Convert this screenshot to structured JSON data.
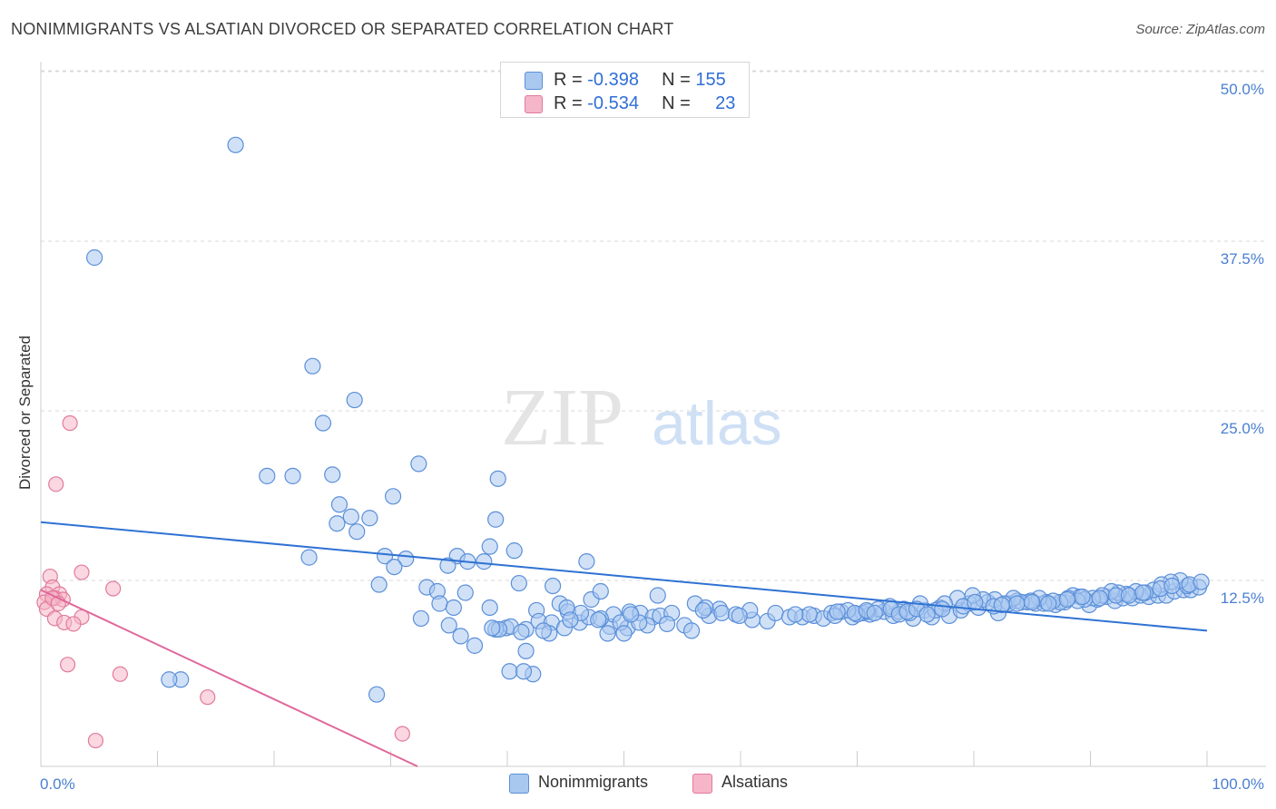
{
  "header": {
    "title": "NONIMMIGRANTS VS ALSATIAN DIVORCED OR SEPARATED CORRELATION CHART",
    "source": "Source: ZipAtlas.com"
  },
  "watermark": {
    "zip": "ZIP",
    "atlas": "atlas"
  },
  "legend_top": {
    "rows": [
      {
        "r_label": "R = ",
        "r_value": "-0.398",
        "n_label": "N = ",
        "n_value": "155"
      },
      {
        "r_label": "R = ",
        "r_value": "-0.534",
        "n_label": "N = ",
        "n_value": "23"
      }
    ]
  },
  "legend_bottom": {
    "items": [
      "Nonimmigrants",
      "Alsatians"
    ]
  },
  "colors": {
    "blue_fill": "#a9c8f0",
    "blue_stroke": "#5b8fd9",
    "blue_line": "#2f72d3",
    "pink_fill": "#f6b6c9",
    "pink_stroke": "#e27a9b",
    "pink_line": "#e0669a",
    "grid": "#d9d9d9",
    "tick_text": "#4a7fd1"
  },
  "chart_data": {
    "type": "scatter",
    "title": "NONIMMIGRANTS VS ALSATIAN DIVORCED OR SEPARATED CORRELATION CHART",
    "xlabel": "",
    "ylabel": "Divorced or Separated",
    "xlim": [
      0,
      100
    ],
    "ylim": [
      0,
      50
    ],
    "x_tick_labels": [
      "0.0%",
      "100.0%"
    ],
    "y_ticks": [
      12.5,
      25.0,
      37.5,
      50.0
    ],
    "y_tick_labels": [
      "12.5%",
      "25.0%",
      "37.5%",
      "50.0%"
    ],
    "grid": true,
    "legend_position": "bottom",
    "series": [
      {
        "name": "Nonimmigrants",
        "r": -0.398,
        "n": 155,
        "trend": {
          "x": [
            0,
            100
          ],
          "y": [
            18.0,
            10.0
          ]
        },
        "points": [
          [
            16.7,
            45.8
          ],
          [
            4.6,
            37.5
          ],
          [
            23.3,
            29.5
          ],
          [
            26.9,
            27.0
          ],
          [
            24.2,
            25.3
          ],
          [
            32.4,
            22.3
          ],
          [
            39.2,
            21.2
          ],
          [
            19.4,
            21.4
          ],
          [
            21.6,
            21.4
          ],
          [
            25.0,
            21.5
          ],
          [
            30.2,
            19.9
          ],
          [
            25.6,
            19.3
          ],
          [
            26.6,
            18.4
          ],
          [
            28.2,
            18.3
          ],
          [
            39.0,
            18.2
          ],
          [
            25.4,
            17.9
          ],
          [
            27.1,
            17.3
          ],
          [
            38.5,
            16.2
          ],
          [
            23.0,
            15.4
          ],
          [
            29.5,
            15.5
          ],
          [
            31.3,
            15.3
          ],
          [
            30.3,
            14.7
          ],
          [
            35.7,
            15.5
          ],
          [
            36.6,
            15.1
          ],
          [
            38.0,
            15.1
          ],
          [
            40.6,
            15.9
          ],
          [
            46.8,
            15.1
          ],
          [
            34.9,
            14.8
          ],
          [
            41.0,
            13.5
          ],
          [
            29.0,
            13.4
          ],
          [
            33.1,
            13.2
          ],
          [
            36.4,
            12.8
          ],
          [
            34.0,
            12.9
          ],
          [
            47.2,
            12.3
          ],
          [
            48.0,
            12.9
          ],
          [
            42.5,
            11.5
          ],
          [
            44.5,
            12.0
          ],
          [
            45.2,
            11.4
          ],
          [
            46.2,
            10.6
          ],
          [
            50.5,
            11.4
          ],
          [
            52.9,
            12.6
          ],
          [
            56.1,
            12.0
          ],
          [
            58.2,
            11.6
          ],
          [
            34.2,
            12.0
          ],
          [
            35.4,
            11.7
          ],
          [
            38.5,
            11.7
          ],
          [
            32.6,
            10.9
          ],
          [
            35.0,
            10.4
          ],
          [
            39.9,
            10.2
          ],
          [
            41.6,
            10.1
          ],
          [
            42.7,
            10.7
          ],
          [
            43.8,
            10.6
          ],
          [
            44.9,
            10.2
          ],
          [
            47.0,
            11.0
          ],
          [
            48.8,
            10.3
          ],
          [
            49.1,
            11.2
          ],
          [
            50.3,
            10.2
          ],
          [
            51.4,
            11.3
          ],
          [
            52.5,
            11.0
          ],
          [
            53.1,
            11.1
          ],
          [
            54.1,
            11.3
          ],
          [
            55.2,
            10.4
          ],
          [
            55.8,
            10.0
          ],
          [
            57.3,
            11.1
          ],
          [
            58.4,
            11.3
          ],
          [
            59.6,
            11.2
          ],
          [
            61.0,
            10.8
          ],
          [
            62.3,
            10.7
          ],
          [
            63.0,
            11.3
          ],
          [
            64.2,
            11.0
          ],
          [
            65.3,
            11.0
          ],
          [
            66.3,
            11.1
          ],
          [
            67.1,
            10.9
          ],
          [
            67.8,
            11.3
          ],
          [
            68.6,
            11.4
          ],
          [
            69.6,
            11.0
          ],
          [
            70.5,
            11.3
          ],
          [
            71.1,
            11.2
          ],
          [
            72.3,
            11.4
          ],
          [
            73.1,
            11.1
          ],
          [
            74.0,
            11.6
          ],
          [
            74.8,
            10.9
          ],
          [
            75.8,
            11.5
          ],
          [
            76.4,
            11.0
          ],
          [
            77.1,
            11.7
          ],
          [
            77.9,
            11.1
          ],
          [
            78.9,
            11.5
          ],
          [
            79.6,
            12.0
          ],
          [
            80.4,
            11.7
          ],
          [
            81.2,
            12.1
          ],
          [
            82.1,
            11.3
          ],
          [
            83.0,
            12.0
          ],
          [
            83.7,
            12.2
          ],
          [
            84.6,
            12.1
          ],
          [
            85.3,
            12.0
          ],
          [
            86.2,
            12.1
          ],
          [
            87.0,
            11.9
          ],
          [
            87.8,
            12.1
          ],
          [
            88.5,
            12.6
          ],
          [
            89.1,
            12.5
          ],
          [
            89.9,
            11.9
          ],
          [
            90.6,
            12.3
          ],
          [
            91.4,
            12.5
          ],
          [
            92.1,
            12.2
          ],
          [
            92.8,
            12.4
          ],
          [
            93.6,
            12.4
          ],
          [
            94.3,
            12.6
          ],
          [
            95.0,
            12.5
          ],
          [
            95.8,
            12.6
          ],
          [
            96.5,
            12.6
          ],
          [
            97.2,
            12.9
          ],
          [
            98.0,
            13.0
          ],
          [
            98.6,
            13.0
          ],
          [
            99.3,
            13.2
          ],
          [
            98.3,
            13.3
          ],
          [
            97.7,
            13.7
          ],
          [
            96.9,
            13.6
          ],
          [
            96.1,
            13.4
          ],
          [
            95.4,
            13.0
          ],
          [
            94.7,
            12.8
          ],
          [
            93.9,
            12.9
          ],
          [
            93.1,
            12.7
          ],
          [
            92.4,
            12.8
          ],
          [
            91.8,
            12.9
          ],
          [
            91.0,
            12.6
          ],
          [
            90.2,
            12.4
          ],
          [
            89.5,
            12.3
          ],
          [
            88.9,
            12.2
          ],
          [
            88.1,
            12.4
          ],
          [
            87.4,
            12.1
          ],
          [
            86.8,
            12.2
          ],
          [
            86.0,
            12.0
          ],
          [
            85.6,
            12.4
          ],
          [
            84.9,
            12.2
          ],
          [
            84.1,
            12.1
          ],
          [
            83.4,
            12.4
          ],
          [
            82.6,
            12.0
          ],
          [
            81.8,
            12.3
          ],
          [
            80.8,
            12.3
          ],
          [
            79.9,
            12.6
          ],
          [
            78.6,
            12.4
          ],
          [
            77.5,
            12.0
          ],
          [
            76.7,
            11.5
          ],
          [
            75.4,
            12.0
          ],
          [
            74.5,
            11.3
          ],
          [
            73.6,
            11.4
          ],
          [
            72.8,
            11.8
          ],
          [
            71.8,
            11.6
          ],
          [
            70.9,
            11.4
          ],
          [
            70.0,
            11.2
          ],
          [
            69.2,
            11.5
          ],
          [
            68.1,
            11.1
          ],
          [
            65.9,
            11.2
          ],
          [
            64.7,
            11.2
          ],
          [
            60.8,
            11.5
          ],
          [
            59.9,
            11.1
          ],
          [
            57.0,
            11.7
          ],
          [
            53.7,
            10.5
          ],
          [
            52.0,
            10.4
          ],
          [
            51.3,
            10.6
          ],
          [
            49.7,
            10.6
          ],
          [
            48.0,
            10.9
          ],
          [
            46.3,
            11.3
          ],
          [
            45.1,
            11.7
          ],
          [
            43.6,
            9.8
          ],
          [
            41.6,
            8.5
          ],
          [
            40.2,
            7.0
          ],
          [
            43.1,
            10.0
          ],
          [
            45.4,
            10.8
          ],
          [
            47.8,
            10.8
          ],
          [
            39.0,
            10.1
          ],
          [
            36.0,
            9.6
          ],
          [
            37.2,
            8.9
          ],
          [
            42.2,
            6.8
          ],
          [
            12.0,
            6.4
          ],
          [
            40.3,
            10.3
          ],
          [
            39.3,
            10.1
          ],
          [
            41.2,
            9.9
          ],
          [
            50.0,
            9.8
          ],
          [
            48.6,
            9.8
          ],
          [
            56.8,
            11.5
          ],
          [
            38.7,
            10.2
          ],
          [
            43.9,
            13.3
          ],
          [
            50.6,
            11.2
          ],
          [
            68.3,
            11.4
          ],
          [
            69.8,
            11.3
          ],
          [
            70.8,
            11.5
          ],
          [
            71.5,
            11.3
          ],
          [
            72.9,
            11.6
          ],
          [
            73.6,
            11.2
          ],
          [
            74.3,
            11.4
          ],
          [
            75.1,
            11.6
          ],
          [
            76.0,
            11.2
          ],
          [
            77.3,
            11.6
          ],
          [
            79.1,
            11.8
          ],
          [
            80.1,
            12.1
          ],
          [
            81.7,
            11.8
          ],
          [
            82.4,
            11.9
          ],
          [
            83.7,
            12.0
          ],
          [
            85.0,
            12.1
          ],
          [
            86.4,
            12.0
          ],
          [
            88.0,
            12.3
          ],
          [
            89.3,
            12.5
          ],
          [
            90.8,
            12.4
          ],
          [
            92.2,
            12.6
          ],
          [
            93.3,
            12.6
          ],
          [
            94.5,
            12.8
          ],
          [
            96.0,
            13.1
          ],
          [
            97.0,
            13.3
          ],
          [
            98.5,
            13.4
          ],
          [
            99.5,
            13.6
          ],
          [
            28.8,
            5.3
          ],
          [
            41.4,
            7.0
          ],
          [
            11.0,
            6.4
          ]
        ]
      },
      {
        "name": "Alsatians",
        "r": -0.534,
        "n": 23,
        "trend": {
          "x": [
            0,
            32.3
          ],
          "y": [
            13.0,
            0
          ]
        },
        "points": [
          [
            2.5,
            25.3
          ],
          [
            1.3,
            20.8
          ],
          [
            0.8,
            14.0
          ],
          [
            3.5,
            14.3
          ],
          [
            6.2,
            13.1
          ],
          [
            1.0,
            13.2
          ],
          [
            0.5,
            12.7
          ],
          [
            1.6,
            12.7
          ],
          [
            1.2,
            12.4
          ],
          [
            0.3,
            12.1
          ],
          [
            1.9,
            12.3
          ],
          [
            0.5,
            11.6
          ],
          [
            1.2,
            10.9
          ],
          [
            3.5,
            11.0
          ],
          [
            2.0,
            10.6
          ],
          [
            2.8,
            10.5
          ],
          [
            2.3,
            7.5
          ],
          [
            6.8,
            6.8
          ],
          [
            14.3,
            5.1
          ],
          [
            31.0,
            2.4
          ],
          [
            4.7,
            1.9
          ],
          [
            1.0,
            12.4
          ],
          [
            1.5,
            12.0
          ]
        ]
      }
    ]
  }
}
